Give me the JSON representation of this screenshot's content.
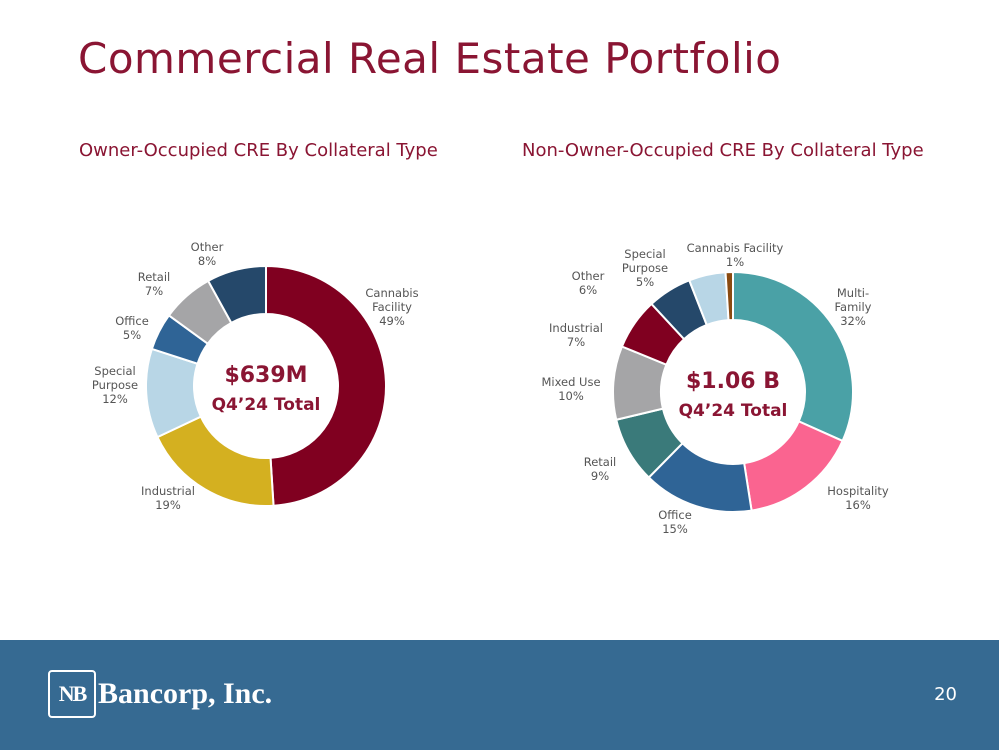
{
  "page": {
    "title": "Commercial Real Estate Portfolio",
    "number": "20",
    "company": "Bancorp, Inc.",
    "logo_mark": "NB"
  },
  "chart_data": [
    {
      "type": "pie",
      "title": "Owner-Occupied CRE By Collateral Type",
      "center_value": "$639M",
      "center_label": "Q4’24 Total",
      "slices": [
        {
          "label": "Cannabis Facility",
          "label_text": "Cannabis\nFacility\n49%",
          "value": 49,
          "color": "#800020"
        },
        {
          "label": "Industrial",
          "label_text": "Industrial\n19%",
          "value": 19,
          "color": "#d4b020"
        },
        {
          "label": "Special Purpose",
          "label_text": "Special\nPurpose\n12%",
          "value": 12,
          "color": "#b8d6e6"
        },
        {
          "label": "Office",
          "label_text": "Office\n5%",
          "value": 5,
          "color": "#2f6496"
        },
        {
          "label": "Retail",
          "label_text": "Retail\n7%",
          "value": 7,
          "color": "#a5a5a7"
        },
        {
          "label": "Other",
          "label_text": "Other\n8%",
          "value": 8,
          "color": "#25486a"
        }
      ]
    },
    {
      "type": "pie",
      "title": "Non-Owner-Occupied CRE By Collateral Type",
      "center_value": "$1.06 B",
      "center_label": "Q4’24 Total",
      "slices": [
        {
          "label": "Multi-Family",
          "label_text": "Multi-\nFamily\n32%",
          "value": 32,
          "color": "#4aa1a6"
        },
        {
          "label": "Hospitality",
          "label_text": "Hospitality\n16%",
          "value": 16,
          "color": "#fa6490"
        },
        {
          "label": "Office",
          "label_text": "Office\n15%",
          "value": 15,
          "color": "#2f6496"
        },
        {
          "label": "Retail",
          "label_text": "Retail\n9%",
          "value": 9,
          "color": "#3a7a7a"
        },
        {
          "label": "Mixed Use",
          "label_text": "Mixed Use\n10%",
          "value": 10,
          "color": "#a5a5a7"
        },
        {
          "label": "Industrial",
          "label_text": "Industrial\n7%",
          "value": 7,
          "color": "#800020"
        },
        {
          "label": "Other",
          "label_text": "Other\n6%",
          "value": 6,
          "color": "#25486a"
        },
        {
          "label": "Special Purpose",
          "label_text": "Special\nPurpose\n5%",
          "value": 5,
          "color": "#b8d6e6"
        },
        {
          "label": "Cannabis Facility",
          "label_text": "Cannabis Facility\n1%",
          "value": 1,
          "color": "#8a4a10"
        }
      ]
    }
  ]
}
